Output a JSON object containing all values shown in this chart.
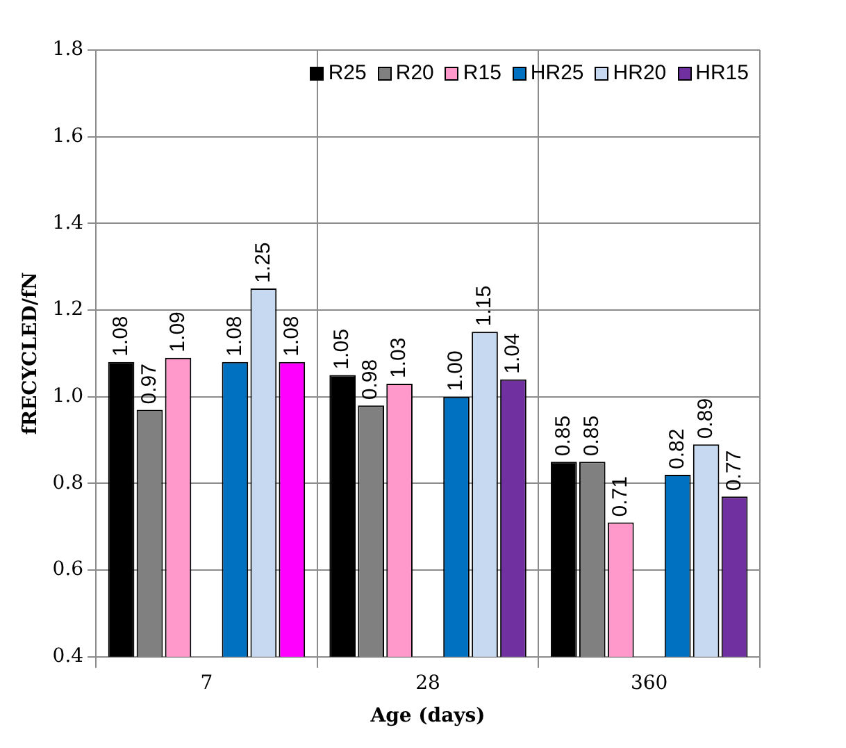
{
  "chart_data": {
    "type": "bar",
    "xlabel": "Age (days)",
    "ylabel": "fRECYCLED/fN",
    "categories": [
      "7",
      "28",
      "360"
    ],
    "series": [
      {
        "name": "R25",
        "color": "#000000",
        "values": [
          1.08,
          1.05,
          0.85
        ],
        "value_labels": [
          "1.08",
          "1.05",
          "0.85"
        ]
      },
      {
        "name": "R20",
        "color": "#808080",
        "values": [
          0.97,
          0.98,
          0.85
        ],
        "value_labels": [
          "0.97",
          "0.98",
          "0.85"
        ]
      },
      {
        "name": "R15",
        "color": "#ff99cc",
        "values": [
          1.09,
          1.03,
          0.71
        ],
        "value_labels": [
          "1.09",
          "1.03",
          "0.71"
        ]
      },
      {
        "name": "HR25",
        "color": "#0070c0",
        "values": [
          1.08,
          1.0,
          0.82
        ],
        "value_labels": [
          "1.08",
          "1.00",
          "0.82"
        ]
      },
      {
        "name": "HR20",
        "color": "#c6d9f1",
        "values": [
          1.25,
          1.15,
          0.89
        ],
        "value_labels": [
          "1.25",
          "1.15",
          "0.89"
        ]
      },
      {
        "name": "HR15",
        "color": "#7030a0",
        "colors": [
          "#ff00ff",
          "#7030a0",
          "#7030a0"
        ],
        "values": [
          1.08,
          1.04,
          0.77
        ],
        "value_labels": [
          "1.08",
          "1.04",
          "0.77"
        ]
      }
    ],
    "ylim": [
      0.4,
      1.8
    ],
    "yticks": [
      0.4,
      0.6,
      0.8,
      {
        "value": 1,
        "label": "1.0"
      },
      1.2,
      1.4,
      1.6,
      1.8
    ],
    "grid": "y",
    "legend": "top right"
  }
}
